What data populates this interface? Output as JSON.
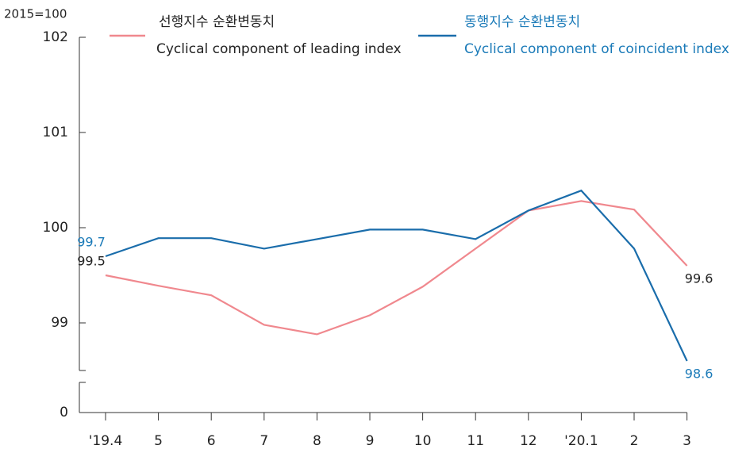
{
  "chart_data": {
    "type": "line",
    "unit_label": "2015=100",
    "categories": [
      "'19.4",
      "5",
      "6",
      "7",
      "8",
      "9",
      "10",
      "11",
      "12",
      "'20.1",
      "2",
      "3"
    ],
    "series": [
      {
        "name": [
          "선행지수 순환변동치",
          "Cyclical component of leading index"
        ],
        "color": "#f0888e",
        "label_color": "#222222",
        "values": [
          99.5,
          99.39,
          99.29,
          98.98,
          98.88,
          99.08,
          99.38,
          99.78,
          100.18,
          100.28,
          100.19,
          99.6
        ]
      },
      {
        "name": [
          "동행지수 순환변동치",
          "Cyclical component of coincident index"
        ],
        "color": "#1a6dab",
        "label_color": "#1a7ab8",
        "values": [
          99.7,
          99.89,
          99.89,
          99.78,
          99.88,
          99.98,
          99.98,
          99.88,
          100.18,
          100.39,
          99.78,
          98.6
        ]
      }
    ],
    "data_labels_at": [
      0,
      11
    ],
    "ylim": [
      98.5,
      102
    ],
    "yticks": [
      0,
      99,
      100,
      101,
      102
    ],
    "axis_break": true
  }
}
